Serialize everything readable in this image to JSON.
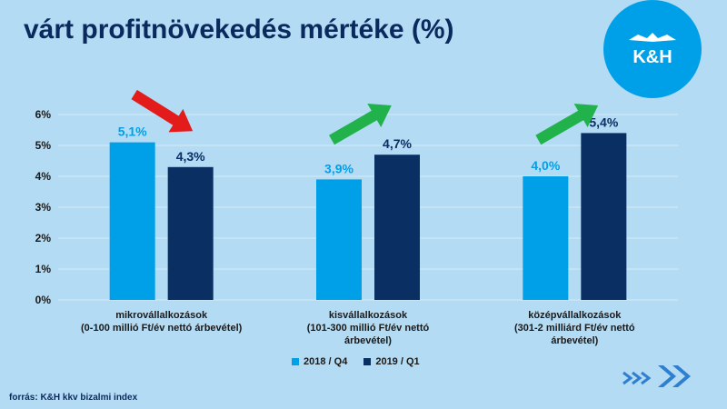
{
  "title": "várt profitnövekedés mértéke (%)",
  "logo_text": "K&H",
  "source": "forrás: K&H kkv bizalmi index",
  "colors": {
    "background": "#b3dbf4",
    "series_2018": "#00a0e8",
    "series_2019": "#0a2f63",
    "arrow_down": "#e41b1b",
    "arrow_up": "#22b24c",
    "title": "#0a2a5e"
  },
  "chart_data": {
    "type": "bar",
    "categories": [
      [
        "mikrovállalkozások",
        "(0-100 millió Ft/év nettó árbevétel)"
      ],
      [
        "kisvállalkozások",
        "(101-300 millió Ft/év nettó",
        "árbevétel)"
      ],
      [
        "középvállalkozások",
        "(301-2 milliárd Ft/év nettó",
        "árbevétel)"
      ]
    ],
    "series": [
      {
        "name": "2018 / Q4",
        "values": [
          5.1,
          3.9,
          4.0
        ],
        "labels": [
          "5,1%",
          "3,9%",
          "4,0%"
        ]
      },
      {
        "name": "2019 / Q1",
        "values": [
          4.3,
          4.7,
          5.4
        ],
        "labels": [
          "4,3%",
          "4,7%",
          "5,4%"
        ]
      }
    ],
    "y_ticks": [
      "0%",
      "1%",
      "2%",
      "3%",
      "4%",
      "5%",
      "6%"
    ],
    "ylim": [
      0,
      6
    ],
    "grid": true,
    "legend_position": "bottom",
    "trend_arrows": [
      "down",
      "up",
      "up"
    ]
  }
}
